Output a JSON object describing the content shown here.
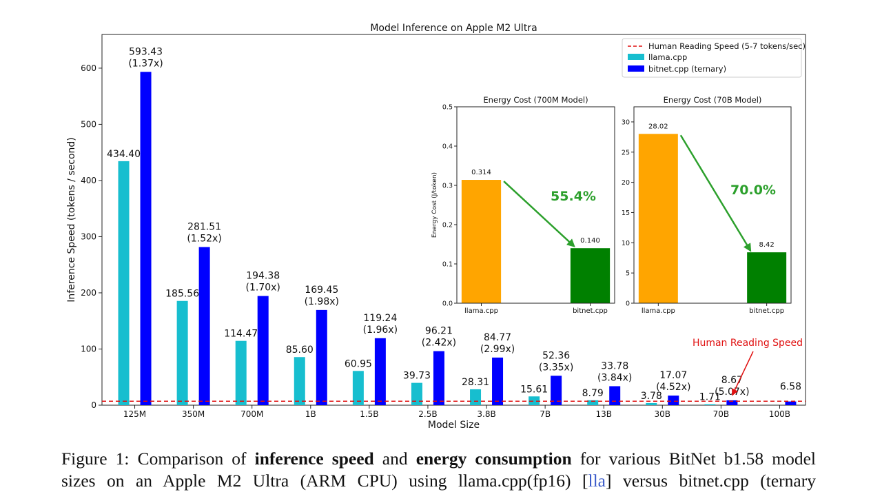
{
  "chart_data": [
    {
      "id": "main",
      "type": "bar",
      "title": "Model Inference on Apple M2 Ultra",
      "xlabel": "Model Size",
      "ylabel": "Inference Speed (tokens / second)",
      "ylim": [
        0,
        660
      ],
      "yticks": [
        "0",
        "100",
        "200",
        "300",
        "400",
        "500",
        "600"
      ],
      "categories": [
        "125M",
        "350M",
        "700M",
        "1B",
        "1.5B",
        "2.5B",
        "3.8B",
        "7B",
        "13B",
        "30B",
        "70B",
        "100B"
      ],
      "series": [
        {
          "name": "llama.cpp",
          "color": "#17becf",
          "values": [
            434.4,
            185.56,
            114.47,
            85.6,
            60.95,
            39.73,
            28.31,
            15.61,
            8.79,
            3.78,
            1.71,
            null
          ],
          "labels": [
            "434.40",
            "185.56",
            "114.47",
            "85.60",
            "60.95",
            "39.73",
            "28.31",
            "15.61",
            "8.79",
            "3.78",
            "1.71",
            ""
          ]
        },
        {
          "name": "bitnet.cpp (ternary)",
          "color": "#0000ff",
          "values": [
            593.43,
            281.51,
            194.38,
            169.45,
            119.24,
            96.21,
            84.77,
            52.36,
            33.78,
            17.07,
            8.67,
            6.58
          ],
          "labels": [
            "593.43",
            "281.51",
            "194.38",
            "169.45",
            "119.24",
            "96.21",
            "84.77",
            "52.36",
            "33.78",
            "17.07",
            "8.67",
            "6.58"
          ],
          "speedups": [
            "(1.37x)",
            "(1.52x)",
            "(1.70x)",
            "(1.98x)",
            "(1.96x)",
            "(2.42x)",
            "(2.99x)",
            "(3.35x)",
            "(3.84x)",
            "(4.52x)",
            "(5.07x)",
            ""
          ]
        }
      ],
      "reference_line": {
        "name": "Human Reading Speed (5-7 tokens/sec)",
        "value": 7,
        "color": "#e01010"
      },
      "annotation": {
        "text": "Human Reading Speed",
        "color": "#e01010"
      },
      "legend": "top-right"
    },
    {
      "id": "inset_700m",
      "type": "bar",
      "title": "Energy Cost (700M Model)",
      "ylabel": "Energy Cost (J/token)",
      "ylim": [
        0,
        0.5
      ],
      "yticks": [
        "0.0",
        "0.1",
        "0.2",
        "0.3",
        "0.4",
        "0.5"
      ],
      "categories": [
        "llama.cpp",
        "bitnet.cpp"
      ],
      "values": [
        0.314,
        0.14
      ],
      "labels": [
        "0.314",
        "0.140"
      ],
      "colors": [
        "#ffa500",
        "#008000"
      ],
      "reduction": "55.4%"
    },
    {
      "id": "inset_70b",
      "type": "bar",
      "title": "Energy Cost (70B Model)",
      "ylim": [
        0,
        32.5
      ],
      "yticks": [
        "0",
        "5",
        "10",
        "15",
        "20",
        "25",
        "30"
      ],
      "categories": [
        "llama.cpp",
        "bitnet.cpp"
      ],
      "values": [
        28.02,
        8.42
      ],
      "labels": [
        "28.02",
        "8.42"
      ],
      "colors": [
        "#ffa500",
        "#008000"
      ],
      "reduction": "70.0%"
    }
  ],
  "caption": {
    "line1_prefix": "Figure 1: Comparison of ",
    "bold1": "inference speed",
    "and": " and ",
    "bold2": "energy consumption",
    "line1_suffix": " for various BitNet b1.58 model",
    "line2_prefix": "sizes on an Apple M2 Ultra (ARM CPU) using llama.cpp(fp16) [",
    "ref": "lla",
    "line2_suffix": "] versus bitnet.cpp (ternary"
  }
}
